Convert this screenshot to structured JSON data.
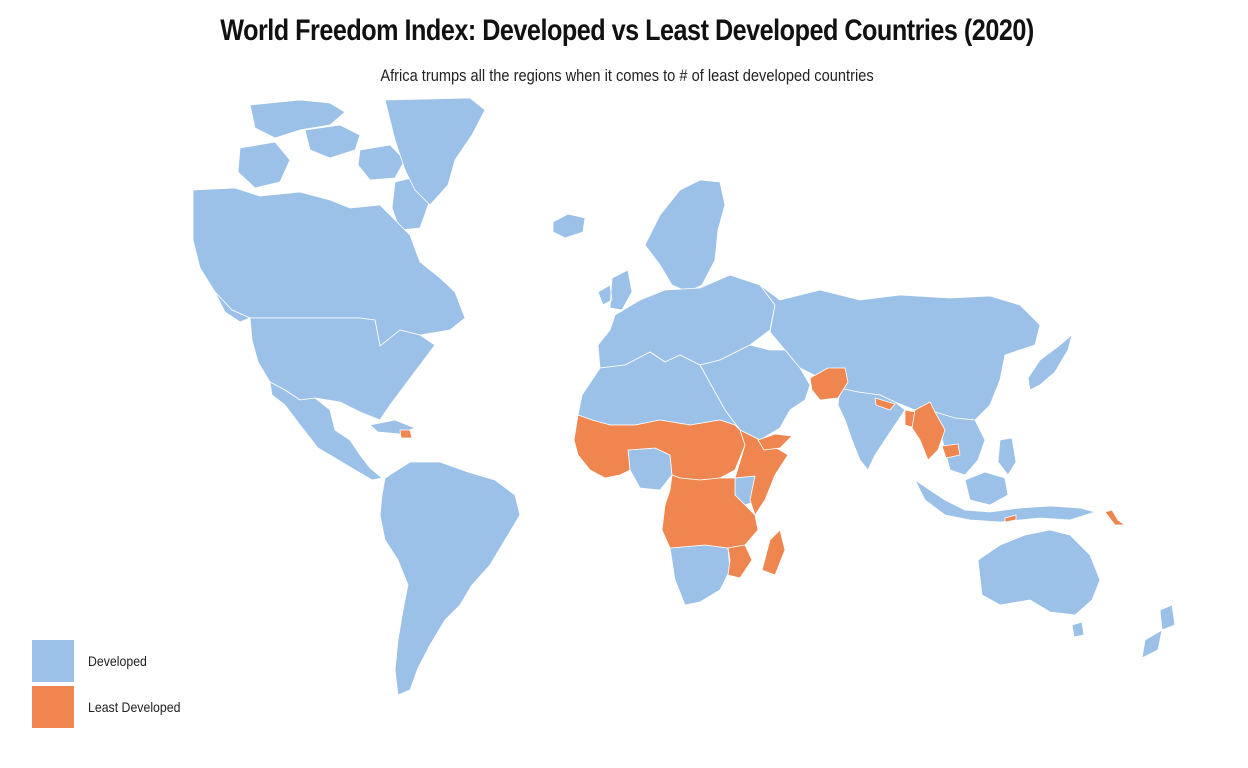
{
  "title": "World Freedom Index: Developed vs Least Developed Countries (2020)",
  "subtitle": "Africa trumps all the regions when it comes to # of least developed countries",
  "colors": {
    "developed": "#9bc1e8",
    "least_developed": "#ef8650",
    "background": "#ffffff"
  },
  "legend": {
    "items": [
      {
        "label": "Developed",
        "color_key": "developed"
      },
      {
        "label": "Least Developed",
        "color_key": "least_developed"
      }
    ]
  }
}
